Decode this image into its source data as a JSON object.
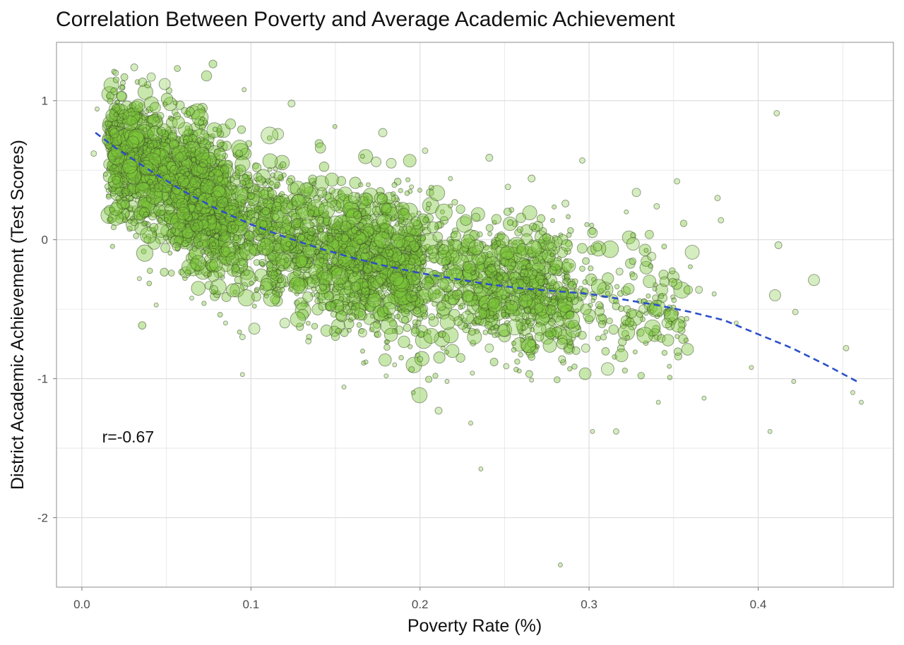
{
  "chart_data": {
    "type": "scatter",
    "title": "Correlation Between Poverty and Average Academic Achievement",
    "xlabel": "Poverty Rate (%)",
    "ylabel": "District Academic Achievement (Test Scores)",
    "xlim": [
      -0.015,
      0.48
    ],
    "ylim": [
      -2.5,
      1.42
    ],
    "x_ticks": [
      0.0,
      0.1,
      0.2,
      0.3,
      0.4
    ],
    "x_tick_labels": [
      "0.0",
      "0.1",
      "0.2",
      "0.3",
      "0.4"
    ],
    "y_ticks": [
      -2,
      -1,
      0,
      1
    ],
    "y_tick_labels": [
      "-2",
      "-1",
      "0",
      "1"
    ],
    "grid": true,
    "annotation": "r=-0.67",
    "annotation_position": [
      0.012,
      -1.46
    ],
    "colors": {
      "point_fill": "#7cc63a",
      "point_stroke": "#3a4a2a",
      "trend_line": "#2b4fc9",
      "grid": "#dcdcdc",
      "panel_border": "#a0a0a0"
    },
    "trend_line": {
      "style": "dashed",
      "x": [
        0.008,
        0.02,
        0.04,
        0.06,
        0.08,
        0.1,
        0.12,
        0.14,
        0.16,
        0.18,
        0.2,
        0.22,
        0.24,
        0.26,
        0.28,
        0.3,
        0.32,
        0.34,
        0.36,
        0.38,
        0.4,
        0.42,
        0.44,
        0.46
      ],
      "y": [
        0.77,
        0.66,
        0.5,
        0.35,
        0.22,
        0.11,
        0.02,
        -0.06,
        -0.13,
        -0.19,
        -0.24,
        -0.28,
        -0.32,
        -0.35,
        -0.37,
        -0.39,
        -0.43,
        -0.47,
        -0.52,
        -0.58,
        -0.68,
        -0.78,
        -0.9,
        -1.03
      ]
    },
    "series": [
      {
        "points": [
          [
            0.031,
            1.24,
            5
          ],
          [
            0.041,
            1.17,
            6
          ],
          [
            0.049,
            1.12,
            8
          ],
          [
            0.02,
            1.2,
            4
          ],
          [
            0.124,
            0.98,
            5
          ],
          [
            0.096,
            1.08,
            3
          ],
          [
            0.411,
            0.91,
            4
          ],
          [
            0.178,
            0.77,
            6
          ],
          [
            0.116,
            0.76,
            8
          ],
          [
            0.111,
            0.75,
            12
          ],
          [
            0.174,
            0.56,
            7
          ],
          [
            0.183,
            0.55,
            7
          ],
          [
            0.241,
            0.59,
            5
          ],
          [
            0.296,
            0.57,
            4
          ],
          [
            0.266,
            0.44,
            5
          ],
          [
            0.352,
            0.42,
            4
          ],
          [
            0.376,
            0.3,
            4
          ],
          [
            0.328,
            0.34,
            6
          ],
          [
            0.378,
            0.14,
            4
          ],
          [
            0.361,
            -0.09,
            10
          ],
          [
            0.412,
            -0.04,
            5
          ],
          [
            0.433,
            -0.29,
            8
          ],
          [
            0.41,
            -0.4,
            8
          ],
          [
            0.422,
            -0.52,
            4
          ],
          [
            0.452,
            -0.78,
            4
          ],
          [
            0.456,
            -1.1,
            3
          ],
          [
            0.461,
            -1.17,
            3
          ],
          [
            0.396,
            -0.92,
            3
          ],
          [
            0.421,
            -1.02,
            3
          ],
          [
            0.407,
            -1.38,
            3
          ],
          [
            0.368,
            -1.14,
            3
          ],
          [
            0.341,
            -1.17,
            3
          ],
          [
            0.316,
            -1.38,
            4
          ],
          [
            0.302,
            -1.38,
            3
          ],
          [
            0.311,
            -0.93,
            9
          ],
          [
            0.236,
            -1.65,
            3
          ],
          [
            0.283,
            -2.34,
            3
          ],
          [
            0.211,
            -1.23,
            5
          ],
          [
            0.23,
            -1.32,
            3
          ],
          [
            0.196,
            -1.1,
            3
          ],
          [
            0.155,
            -1.06,
            3
          ],
          [
            0.095,
            -0.97,
            3
          ],
          [
            0.044,
            -0.47,
            3
          ],
          [
            0.009,
            0.94,
            3
          ],
          [
            0.007,
            0.62,
            4
          ],
          [
            0.387,
            -0.6,
            3
          ],
          [
            0.374,
            -0.39,
            3
          ],
          [
            0.34,
            0.24,
            4
          ],
          [
            0.322,
            0.2,
            3
          ],
          [
            0.286,
            0.26,
            5
          ],
          [
            0.252,
            0.38,
            4
          ],
          [
            0.218,
            0.44,
            3
          ],
          [
            0.166,
            0.6,
            3
          ],
          [
            0.142,
            0.34,
            7
          ],
          [
            0.195,
            0.38,
            3
          ],
          [
            0.203,
            0.64,
            4
          ],
          [
            0.346,
            -0.6,
            7
          ],
          [
            0.337,
            -0.12,
            6
          ],
          [
            0.326,
            -0.03,
            9
          ],
          [
            0.365,
            -0.36,
            5
          ],
          [
            0.256,
            -0.63,
            11
          ],
          [
            0.241,
            -0.78,
            6
          ],
          [
            0.228,
            -0.56,
            9
          ],
          [
            0.213,
            -0.68,
            5
          ],
          [
            0.2,
            -0.86,
            4
          ],
          [
            0.185,
            -0.9,
            3
          ],
          [
            0.168,
            -0.88,
            3
          ],
          [
            0.134,
            -0.73,
            4
          ],
          [
            0.12,
            -0.6,
            7
          ],
          [
            0.102,
            -0.64,
            8
          ],
          [
            0.095,
            -0.7,
            4
          ],
          [
            0.085,
            -0.6,
            3
          ],
          [
            0.065,
            -0.42,
            3
          ],
          [
            0.034,
            -0.28,
            3
          ],
          [
            0.056,
            -0.05,
            6
          ],
          [
            0.068,
            0.1,
            9
          ],
          [
            0.083,
            0.27,
            8
          ],
          [
            0.038,
            0.52,
            10
          ],
          [
            0.03,
            0.7,
            9
          ],
          [
            0.025,
            0.9,
            7
          ],
          [
            0.014,
            0.47,
            3
          ],
          [
            0.291,
            -0.62,
            8
          ],
          [
            0.298,
            -0.78,
            6
          ],
          [
            0.274,
            -0.44,
            7
          ],
          [
            0.263,
            -0.29,
            5
          ],
          [
            0.278,
            -0.05,
            6
          ],
          [
            0.302,
            0.05,
            7
          ],
          [
            0.318,
            -0.23,
            5
          ],
          [
            0.332,
            -0.5,
            6
          ],
          [
            0.306,
            -0.47,
            5
          ],
          [
            0.284,
            -0.86,
            5
          ],
          [
            0.266,
            -1.01,
            3
          ],
          [
            0.251,
            -0.91,
            4
          ],
          [
            0.231,
            -0.96,
            3
          ],
          [
            0.216,
            -1.02,
            3
          ],
          [
            0.18,
            -0.98,
            3
          ],
          [
            0.161,
            0.3,
            8
          ],
          [
            0.15,
            0.12,
            10
          ],
          [
            0.128,
            0.28,
            9
          ],
          [
            0.137,
            -0.3,
            9
          ],
          [
            0.176,
            -0.17,
            11
          ],
          [
            0.195,
            -0.41,
            8
          ],
          [
            0.214,
            -0.07,
            7
          ],
          [
            0.233,
            0.16,
            6
          ],
          [
            0.242,
            -0.23,
            8
          ],
          [
            0.104,
            0.45,
            6
          ],
          [
            0.089,
            -0.14,
            9
          ],
          [
            0.078,
            -0.36,
            6
          ],
          [
            0.113,
            -0.25,
            6
          ],
          [
            0.147,
            -0.48,
            7
          ],
          [
            0.166,
            -0.67,
            6
          ],
          [
            0.06,
            0.42,
            8
          ],
          [
            0.047,
            0.78,
            6
          ],
          [
            0.052,
            0.22,
            7
          ],
          [
            0.072,
            0.55,
            6
          ],
          [
            0.093,
            0.62,
            5
          ]
        ]
      }
    ]
  }
}
